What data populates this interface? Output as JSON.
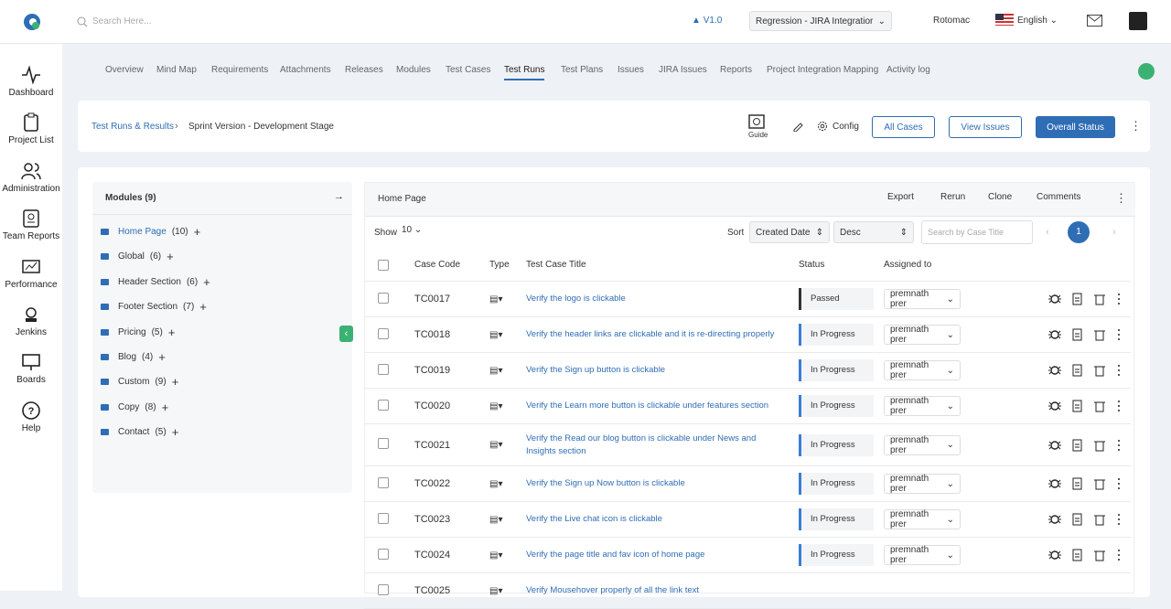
{
  "header": {
    "search_placeholder": "Search Here...",
    "version": "V1.0",
    "project": "Regression - JIRA Integratior",
    "user": "Rotomac",
    "language": "English"
  },
  "sidebar": [
    "Dashboard",
    "Project List",
    "Administration",
    "Team Reports",
    "Performance",
    "Jenkins",
    "Boards",
    "Help"
  ],
  "tabs": [
    {
      "label": "Overview"
    },
    {
      "label": "Mind Map"
    },
    {
      "label": "Requirements"
    },
    {
      "label": "Attachments"
    },
    {
      "label": "Releases"
    },
    {
      "label": "Modules"
    },
    {
      "label": "Test Cases"
    },
    {
      "label": "Test Runs",
      "active": true
    },
    {
      "label": "Test Plans"
    },
    {
      "label": "Issues"
    },
    {
      "label": "JIRA Issues"
    },
    {
      "label": "Reports"
    },
    {
      "label": "Project Integration Mapping"
    },
    {
      "label": "Activity log"
    }
  ],
  "breadcrumb": [
    "Test Runs & Results",
    "Sprint Version - Development Stage"
  ],
  "toolbar": {
    "guide": "Guide",
    "config": "Config",
    "buttons": [
      "All Cases",
      "View Issues",
      "Overall Status"
    ]
  },
  "modules": {
    "title": "Modules (9)",
    "items": [
      {
        "name": "Home Page",
        "count": "(10)",
        "active": true
      },
      {
        "name": "Global",
        "count": "(6)"
      },
      {
        "name": "Header Section",
        "count": "(6)"
      },
      {
        "name": "Footer Section",
        "count": "(7)"
      },
      {
        "name": "Pricing",
        "count": "(5)"
      },
      {
        "name": "Blog",
        "count": "(4)"
      },
      {
        "name": "Custom",
        "count": "(9)"
      },
      {
        "name": "Copy",
        "count": "(8)"
      },
      {
        "name": "Contact",
        "count": "(5)"
      }
    ]
  },
  "panel": {
    "title": "Home Page",
    "actions": [
      "Export",
      "Rerun",
      "Clone",
      "Comments"
    ],
    "show_label": "Show",
    "page_size": 10,
    "sort_label": "Sort",
    "sort_field": "Created Date",
    "sort_order": "Desc",
    "search_placeholder": "Search by Case Title",
    "page": 1
  },
  "table": {
    "columns": [
      "Case Code",
      "Type",
      "Test Case Title",
      "Status",
      "Assigned to"
    ],
    "rows": [
      {
        "code": "TC0017",
        "title": "Verify the logo is clickable",
        "status": "Passed",
        "status_color": "#333333",
        "assignee": "premnath prer"
      },
      {
        "code": "TC0018",
        "title": "Verify the header links are clickable and it is re-directing properly",
        "status": "In Progress",
        "status_color": "#3b7dd8",
        "assignee": "premnath prer"
      },
      {
        "code": "TC0019",
        "title": "Verify the Sign up button is clickable",
        "status": "In Progress",
        "status_color": "#3b7dd8",
        "assignee": "premnath prer"
      },
      {
        "code": "TC0020",
        "title": "Verify the Learn more button is clickable under features section",
        "status": "In Progress",
        "status_color": "#3b7dd8",
        "assignee": "premnath prer"
      },
      {
        "code": "TC0021",
        "title": "Verify the Read our blog button is clickable under News and Insights section",
        "status": "In Progress",
        "status_color": "#3b7dd8",
        "assignee": "premnath prer"
      },
      {
        "code": "TC0022",
        "title": "Verify the Sign up Now button is clickable",
        "status": "In Progress",
        "status_color": "#3b7dd8",
        "assignee": "premnath prer"
      },
      {
        "code": "TC0023",
        "title": "Verify the Live chat icon is clickable",
        "status": "In Progress",
        "status_color": "#3b7dd8",
        "assignee": "premnath prer"
      },
      {
        "code": "TC0024",
        "title": "Verify the page title and fav icon of home page",
        "status": "In Progress",
        "status_color": "#3b7dd8",
        "assignee": "premnath prer"
      },
      {
        "code": "TC0025",
        "title": "Verify Mousehover properly of all the link text"
      }
    ]
  }
}
